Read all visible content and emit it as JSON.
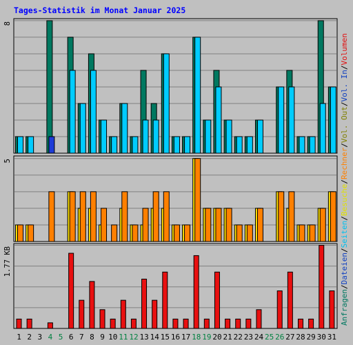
{
  "chart_data": {
    "type": "bar",
    "title": "Tages-Statistik im Monat Januar 2025",
    "categories": [
      "1",
      "2",
      "3",
      "4",
      "5",
      "6",
      "7",
      "8",
      "9",
      "10",
      "11",
      "12",
      "13",
      "14",
      "15",
      "16",
      "17",
      "18",
      "19",
      "20",
      "21",
      "22",
      "23",
      "24",
      "25",
      "26",
      "27",
      "28",
      "29",
      "30",
      "31"
    ],
    "weekend_days": [
      "4",
      "5",
      "11",
      "12",
      "18",
      "19",
      "25",
      "26"
    ],
    "panels": [
      {
        "name": "top",
        "ytick": "8",
        "ylim": [
          0,
          8
        ],
        "series": [
          {
            "name": "Anfragen",
            "color": "#007860",
            "values": [
              1,
              1,
              0,
              8,
              0,
              7,
              3,
              6,
              2,
              1,
              3,
              1,
              5,
              3,
              6,
              1,
              1,
              7,
              2,
              5,
              2,
              1,
              1,
              2,
              0,
              4,
              5,
              1,
              1,
              8,
              4
            ]
          },
          {
            "name": "Dateien",
            "color": "#00ccff",
            "values": [
              1,
              1,
              0,
              1,
              0,
              5,
              3,
              5,
              2,
              1,
              3,
              1,
              2,
              2,
              6,
              1,
              1,
              7,
              2,
              4,
              2,
              1,
              1,
              2,
              0,
              4,
              4,
              1,
              1,
              3,
              4
            ]
          },
          {
            "name": "Seiten",
            "color": "#00ccff",
            "values": [
              0,
              0,
              0,
              1,
              0,
              0,
              0,
              0,
              0,
              0,
              0,
              0,
              0,
              0,
              0,
              0,
              0,
              0,
              0,
              0,
              0,
              0,
              0,
              0,
              0,
              0,
              0,
              0,
              0,
              0,
              0
            ]
          }
        ],
        "dateien_override": {
          "day": "4",
          "color": "#1e3cd8"
        }
      },
      {
        "name": "middle",
        "ytick": "5",
        "ylim": [
          0,
          5
        ],
        "series": [
          {
            "name": "Besuche",
            "color": "#ffe000",
            "values": [
              1,
              1,
              0,
              0,
              0,
              3,
              2,
              2,
              1,
              0,
              2,
              1,
              1,
              2,
              2,
              1,
              1,
              5,
              2,
              2,
              2,
              1,
              1,
              2,
              0,
              3,
              2,
              1,
              1,
              2,
              3
            ]
          },
          {
            "name": "Rechner",
            "color": "#ff8000",
            "values": [
              1,
              1,
              0,
              3,
              0,
              3,
              3,
              3,
              2,
              1,
              3,
              1,
              2,
              3,
              3,
              1,
              1,
              5,
              2,
              2,
              2,
              1,
              1,
              2,
              0,
              3,
              3,
              1,
              1,
              2,
              3
            ]
          }
        ]
      },
      {
        "name": "bottom",
        "ytick": "1.77 KB",
        "ylim": [
          0,
          1.77
        ],
        "series": [
          {
            "name": "Volumen",
            "color": "#e81010",
            "values": [
              0.2,
              0.2,
              0.0,
              0.12,
              0.0,
              1.6,
              0.6,
              1.0,
              0.4,
              0.2,
              0.6,
              0.2,
              1.05,
              0.6,
              1.2,
              0.2,
              0.2,
              1.55,
              0.2,
              1.2,
              0.2,
              0.2,
              0.2,
              0.4,
              0.0,
              0.8,
              1.2,
              0.2,
              0.2,
              1.77,
              0.8
            ]
          }
        ]
      }
    ],
    "legend": [
      {
        "text": "Anfragen",
        "color": "#007860"
      },
      {
        "text": "/",
        "color": "#000000"
      },
      {
        "text": "Dateien",
        "color": "#1040c0"
      },
      {
        "text": "/",
        "color": "#000000"
      },
      {
        "text": "Seiten",
        "color": "#00c0f0"
      },
      {
        "text": "/",
        "color": "#000000"
      },
      {
        "text": "Besuche",
        "color": "#e0e000"
      },
      {
        "text": "/",
        "color": "#000000"
      },
      {
        "text": "Rechner",
        "color": "#ff8000"
      },
      {
        "text": "/",
        "color": "#000000"
      },
      {
        "text": "Vol. Out",
        "color": "#808000"
      },
      {
        "text": "/",
        "color": "#000000"
      },
      {
        "text": "Vol. In",
        "color": "#1040c0"
      },
      {
        "text": "/",
        "color": "#000000"
      },
      {
        "text": "Volumen",
        "color": "#e01010"
      }
    ],
    "title_color": "#0000ff",
    "weekend_color": "#008040",
    "weekday_color": "#000000",
    "grid": true
  }
}
